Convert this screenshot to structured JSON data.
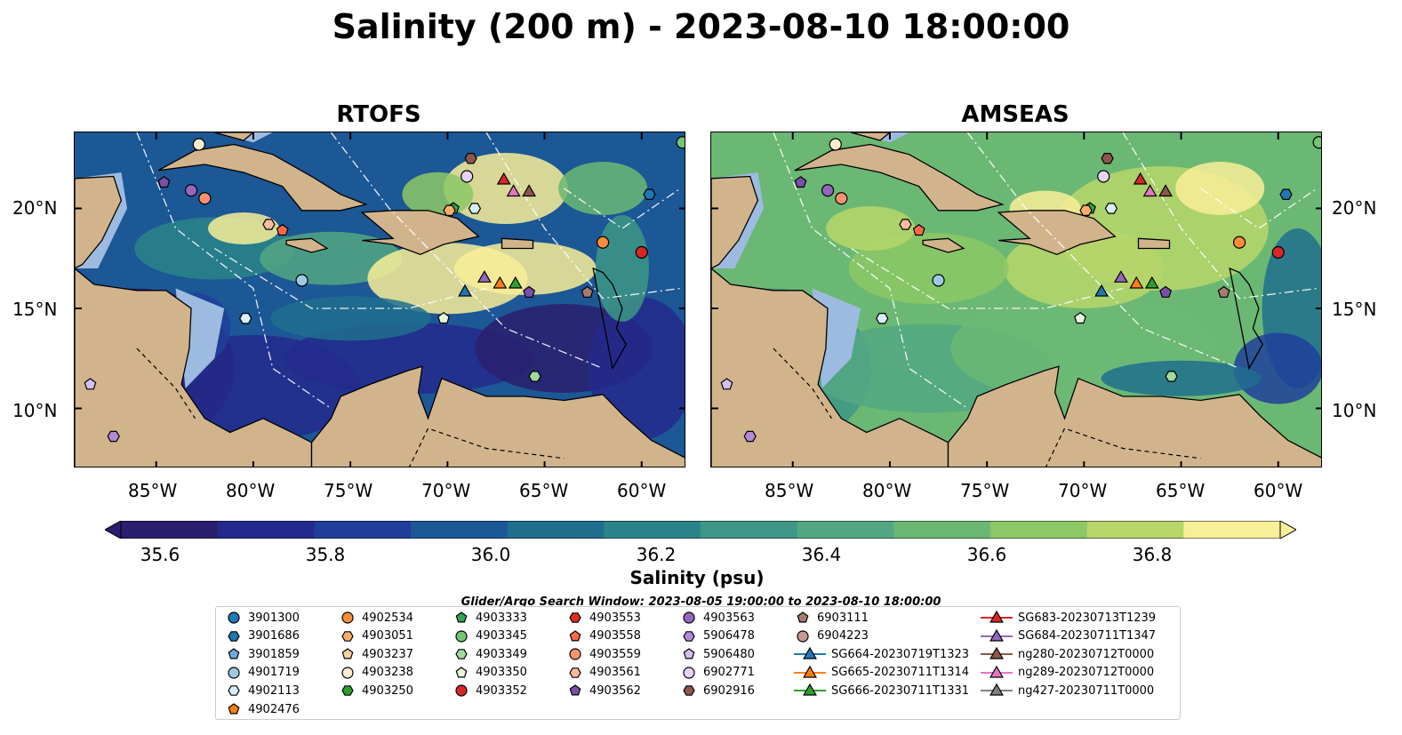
{
  "title": "Salinity (200 m) - 2023-08-10 18:00:00",
  "panels": [
    {
      "name": "RTOFS"
    },
    {
      "name": "AMSEAS"
    }
  ],
  "lat_ticks": [
    "20°N",
    "15°N",
    "10°N"
  ],
  "lon_ticks": [
    "85°W",
    "80°W",
    "75°W",
    "70°W",
    "65°W",
    "60°W"
  ],
  "colorbar": {
    "label": "Salinity (psu)",
    "ticks": [
      "35.6",
      "35.8",
      "36.0",
      "36.2",
      "36.4",
      "36.6",
      "36.8"
    ],
    "colors": [
      "#2a1e6e",
      "#232a8c",
      "#1f3f9a",
      "#1c5796",
      "#1f6e8e",
      "#2a8489",
      "#3d9686",
      "#52a782",
      "#6bb874",
      "#8cc865",
      "#b6d66a",
      "#f8ef98"
    ]
  },
  "search_window": "Glider/Argo Search Window: 2023-08-05 19:00:00 to 2023-08-10 18:00:00",
  "colors": {
    "land": "#d2b48c",
    "shallow": "#9dbbe0"
  },
  "legend": [
    {
      "label": "3901300",
      "marker": "circle",
      "color": "#1f77b4"
    },
    {
      "label": "3901686",
      "marker": "hexagon",
      "color": "#1f77b4"
    },
    {
      "label": "3901859",
      "marker": "pentagon",
      "color": "#6fa8dc"
    },
    {
      "label": "4901719",
      "marker": "circle",
      "color": "#9ecae1"
    },
    {
      "label": "4902113",
      "marker": "hexagon",
      "color": "#d6eef8"
    },
    {
      "label": "4902476",
      "marker": "pentagon",
      "color": "#ff7f0e"
    },
    {
      "label": "4902534",
      "marker": "circle",
      "color": "#fd8d3c"
    },
    {
      "label": "4903051",
      "marker": "hexagon",
      "color": "#fdae6b"
    },
    {
      "label": "4903237",
      "marker": "pentagon",
      "color": "#fdd0a2"
    },
    {
      "label": "4903238",
      "marker": "circle",
      "color": "#feeccf"
    },
    {
      "label": "4903250",
      "marker": "hexagon",
      "color": "#2ca02c"
    },
    {
      "label": "4903333",
      "marker": "pentagon",
      "color": "#31a354"
    },
    {
      "label": "4903345",
      "marker": "circle",
      "color": "#74c476"
    },
    {
      "label": "4903349",
      "marker": "hexagon",
      "color": "#a1d99b"
    },
    {
      "label": "4903350",
      "marker": "pentagon",
      "color": "#e5f5e0"
    },
    {
      "label": "4903352",
      "marker": "circle",
      "color": "#d62728"
    },
    {
      "label": "4903553",
      "marker": "hexagon",
      "color": "#de2d26"
    },
    {
      "label": "4903558",
      "marker": "pentagon",
      "color": "#fb6a4a"
    },
    {
      "label": "4903559",
      "marker": "circle",
      "color": "#fc9272"
    },
    {
      "label": "4903561",
      "marker": "hexagon",
      "color": "#fcbba1"
    },
    {
      "label": "4903562",
      "marker": "pentagon",
      "color": "#7b4fa8"
    },
    {
      "label": "4903563",
      "marker": "circle",
      "color": "#9467bd"
    },
    {
      "label": "5906478",
      "marker": "hexagon",
      "color": "#b48ad6"
    },
    {
      "label": "5906480",
      "marker": "pentagon",
      "color": "#d4bff0"
    },
    {
      "label": "6902771",
      "marker": "circle",
      "color": "#e6d2f6"
    },
    {
      "label": "6902916",
      "marker": "hexagon",
      "color": "#8c564b"
    },
    {
      "label": "6903111",
      "marker": "pentagon",
      "color": "#a97a6e"
    },
    {
      "label": "6904223",
      "marker": "circle",
      "color": "#c49c94"
    },
    {
      "label": "SG664-20230719T1323",
      "marker": "triangle-line",
      "color": "#1f77b4"
    },
    {
      "label": "SG665-20230711T1314",
      "marker": "triangle-line",
      "color": "#ff7f0e"
    },
    {
      "label": "SG666-20230711T1331",
      "marker": "triangle-line",
      "color": "#2ca02c"
    },
    {
      "label": "SG683-20230713T1239",
      "marker": "triangle-line",
      "color": "#d62728"
    },
    {
      "label": "SG684-20230711T1347",
      "marker": "triangle-line",
      "color": "#9467bd"
    },
    {
      "label": "ng280-20230712T0000",
      "marker": "triangle-line",
      "color": "#8c564b"
    },
    {
      "label": "ng289-20230712T0000",
      "marker": "triangle-line",
      "color": "#e377c2"
    },
    {
      "label": "ng427-20230711T0000",
      "marker": "triangle-line",
      "color": "#7f7f7f"
    }
  ],
  "markers": [
    {
      "label": "3901686",
      "lon": -59.6,
      "lat": 20.7
    },
    {
      "label": "4903352",
      "lon": -60.0,
      "lat": 17.8
    },
    {
      "label": "4902534",
      "lon": -62.0,
      "lat": 18.3
    },
    {
      "label": "6903111",
      "lon": -62.8,
      "lat": 15.8
    },
    {
      "label": "4903349",
      "lon": -65.5,
      "lat": 11.6
    },
    {
      "label": "4903350",
      "lon": -70.2,
      "lat": 14.5
    },
    {
      "label": "4901719",
      "lon": -77.5,
      "lat": 16.4
    },
    {
      "label": "4902113",
      "lon": -80.4,
      "lat": 14.5
    },
    {
      "label": "4903561",
      "lon": -79.2,
      "lat": 19.2
    },
    {
      "label": "4903558",
      "lon": -78.5,
      "lat": 18.9
    },
    {
      "label": "4903559",
      "lon": -82.5,
      "lat": 20.5
    },
    {
      "label": "4903563",
      "lon": -83.2,
      "lat": 20.9
    },
    {
      "label": "4903562",
      "lon": -84.6,
      "lat": 21.3
    },
    {
      "label": "5906480",
      "lon": -88.4,
      "lat": 11.2
    },
    {
      "label": "5906478",
      "lon": -87.2,
      "lat": 8.6
    },
    {
      "label": "4903238",
      "lon": -82.8,
      "lat": 23.2
    },
    {
      "label": "6902916",
      "lon": -68.8,
      "lat": 22.5
    },
    {
      "label": "6902771",
      "lon": -69.0,
      "lat": 21.6
    },
    {
      "label": "4903333",
      "lon": -69.7,
      "lat": 20.0
    },
    {
      "label": "4903051",
      "lon": -69.9,
      "lat": 19.9
    },
    {
      "label": "4902113",
      "lon": -68.6,
      "lat": 20.0
    },
    {
      "label": "4903345",
      "lon": -57.9,
      "lat": 23.3
    },
    {
      "label": "SG683-20230713T1239",
      "lon": -67.1,
      "lat": 21.4
    },
    {
      "label": "ng289-20230712T0000",
      "lon": -66.6,
      "lat": 20.8
    },
    {
      "label": "ng280-20230712T0000",
      "lon": -65.8,
      "lat": 20.8
    },
    {
      "label": "SG664-20230719T1323",
      "lon": -69.1,
      "lat": 15.8
    },
    {
      "label": "SG684-20230711T1347",
      "lon": -68.1,
      "lat": 16.5
    },
    {
      "label": "SG665-20230711T1314",
      "lon": -67.3,
      "lat": 16.2
    },
    {
      "label": "SG666-20230711T1331",
      "lon": -66.5,
      "lat": 16.2
    },
    {
      "label": "4903562",
      "lon": -65.8,
      "lat": 15.8
    }
  ]
}
